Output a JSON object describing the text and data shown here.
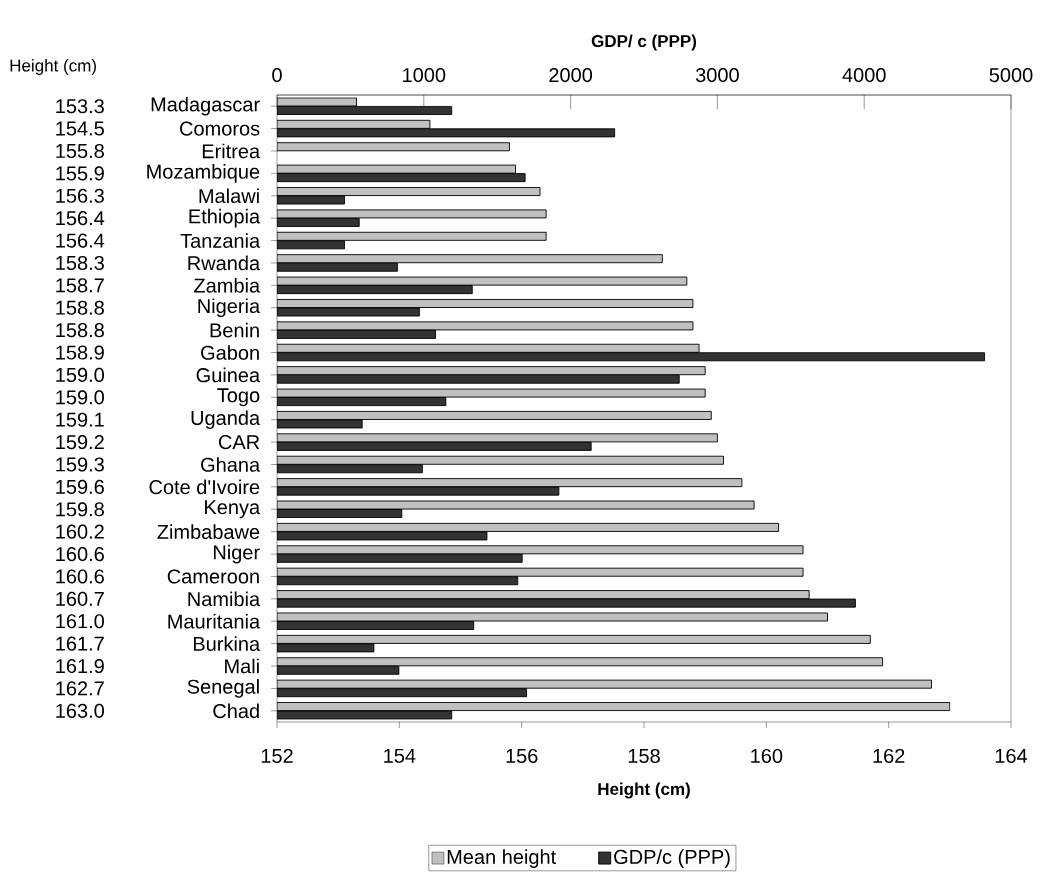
{
  "chart_data": {
    "type": "bar",
    "orientation": "horizontal",
    "xlabel": "Height (cm)",
    "x2label": "GDP/ c (PPP)",
    "ylabel": "Height (cm)",
    "categories": [
      "Madagascar",
      "Comoros",
      "Eritrea",
      "Mozambique",
      "Malawi",
      "Ethiopia",
      "Tanzania",
      "Rwanda",
      "Zambia",
      "Nigeria",
      "Benin",
      "Gabon",
      "Guinea",
      "Togo",
      "Uganda",
      "CAR",
      "Ghana",
      "Cote d'Ivoire",
      "Kenya",
      "Zimbabawe",
      "Niger",
      "Cameroon",
      "Namibia",
      "Mauritania",
      "Burkina",
      "Mali",
      "Senegal",
      "Chad"
    ],
    "series": [
      {
        "name": "Mean height",
        "color": "#c0c0c0",
        "values": [
          153.3,
          154.5,
          155.8,
          155.9,
          156.3,
          156.4,
          156.4,
          158.3,
          158.7,
          158.8,
          158.8,
          158.9,
          159.0,
          159.0,
          159.1,
          159.2,
          159.3,
          159.6,
          159.8,
          160.2,
          160.6,
          160.6,
          160.7,
          161.0,
          161.7,
          161.9,
          162.7,
          163.0
        ],
        "value_labels": [
          "153.3",
          "154.5",
          "155.8",
          "155.9",
          "156.3",
          "156.4",
          "156.4",
          "158.3",
          "158.7",
          "158.8",
          "158.8",
          "158.9",
          "159.0",
          "159.0",
          "159.1",
          "159.2",
          "159.3",
          "159.6",
          "159.8",
          "160.2",
          "160.6",
          "160.6",
          "160.7",
          "161.0",
          "161.7",
          "161.9",
          "162.7",
          "163.0"
        ]
      },
      {
        "name": "GDP/c (PPP)",
        "color": "#333333",
        "axis": "x2",
        "values": [
          1190,
          2300,
          null,
          1690,
          460,
          560,
          460,
          820,
          1330,
          970,
          1080,
          4820,
          2740,
          1150,
          580,
          2140,
          990,
          1920,
          850,
          1430,
          1670,
          1640,
          3940,
          1340,
          660,
          830,
          1700,
          1190
        ]
      }
    ],
    "xlim": [
      152,
      164
    ],
    "xticks": [
      152,
      154,
      156,
      158,
      160,
      162,
      164
    ],
    "x2lim": [
      0,
      5000
    ],
    "x2ticks": [
      0,
      1000,
      2000,
      3000,
      4000,
      5000
    ],
    "legend": "bottom",
    "grid": false
  }
}
